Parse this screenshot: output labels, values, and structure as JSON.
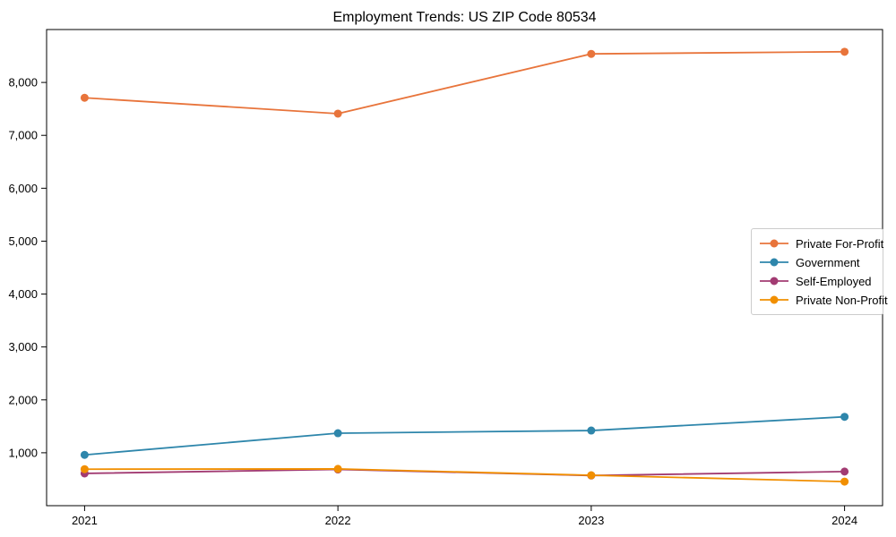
{
  "chart_data": {
    "type": "line",
    "title": "Employment Trends: US ZIP Code 80534",
    "x": [
      2021,
      2022,
      2023,
      2024
    ],
    "x_tick_labels": [
      "2021",
      "2022",
      "2023",
      "2024"
    ],
    "series": [
      {
        "name": "Private For-Profit",
        "color": "#e8743b",
        "values": [
          7710,
          7410,
          8540,
          8580
        ]
      },
      {
        "name": "Government",
        "color": "#2e86ab",
        "values": [
          960,
          1370,
          1420,
          1680
        ]
      },
      {
        "name": "Self-Employed",
        "color": "#a23b72",
        "values": [
          610,
          685,
          570,
          645
        ]
      },
      {
        "name": "Private Non-Profit",
        "color": "#f18f01",
        "values": [
          690,
          695,
          575,
          455
        ]
      }
    ],
    "xlim": [
      2020.85,
      2024.15
    ],
    "ylim": [
      0,
      9000
    ],
    "yticks": [
      1000,
      2000,
      3000,
      4000,
      5000,
      6000,
      7000,
      8000
    ],
    "ytick_labels": [
      "1,000",
      "2,000",
      "3,000",
      "4,000",
      "5,000",
      "6,000",
      "7,000",
      "8,000"
    ],
    "xlabel": "",
    "ylabel": "",
    "grid": false,
    "legend_position": "center-right",
    "marker": "circle",
    "frame_color": "#000000",
    "background_color": "#ffffff"
  }
}
